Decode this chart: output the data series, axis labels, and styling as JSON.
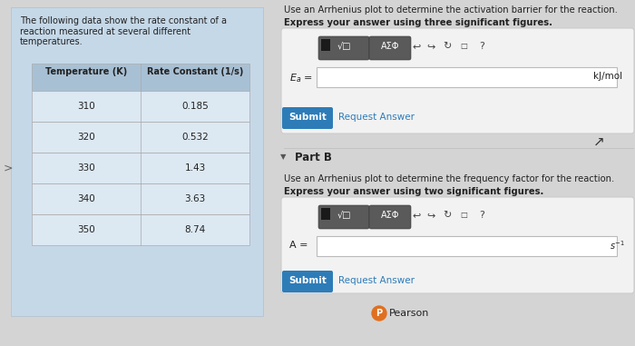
{
  "bg_color": "#d4d4d4",
  "left_panel_bg": "#c5d8e8",
  "table_header_bg": "#a8c0d4",
  "table_row_bg": "#dce8f2",
  "table_border": "#aaaaaa",
  "right_bg": "#e8e8e8",
  "right_bg2": "#ebebeb",
  "white": "#ffffff",
  "submit_color": "#2d7cb8",
  "toolbar_dark": "#5a5a5a",
  "input_border": "#bbbbbb",
  "box_border": "#cccccc",
  "link_color": "#2d7cb8",
  "text_dark": "#222222",
  "text_medium": "#444444",
  "intro_text": "The following data show the rate constant of a\nreaction measured at several different\ntemperatures.",
  "table_headers": [
    "Temperature (K)",
    "Rate Constant (1/s)"
  ],
  "table_data": [
    [
      "310",
      "0.185"
    ],
    [
      "320",
      "0.532"
    ],
    [
      "330",
      "1.43"
    ],
    [
      "340",
      "3.63"
    ],
    [
      "350",
      "8.74"
    ]
  ],
  "part_a_title": "Use an Arrhenius plot to determine the activation barrier for the reaction.",
  "part_a_bold": "Express your answer using three significant figures.",
  "ea_label": "$E_a$ =",
  "ea_unit": "kJ/mol",
  "submit_text": "Submit",
  "request_answer_text": "Request Answer",
  "part_b_label": "Part B",
  "part_b_title": "Use an Arrhenius plot to determine the frequency factor for the reaction.",
  "part_b_bold": "Express your answer using two significant figures.",
  "a_label": "A =",
  "a_unit": "$s^{-1}$",
  "pearson_text": "Pearson"
}
